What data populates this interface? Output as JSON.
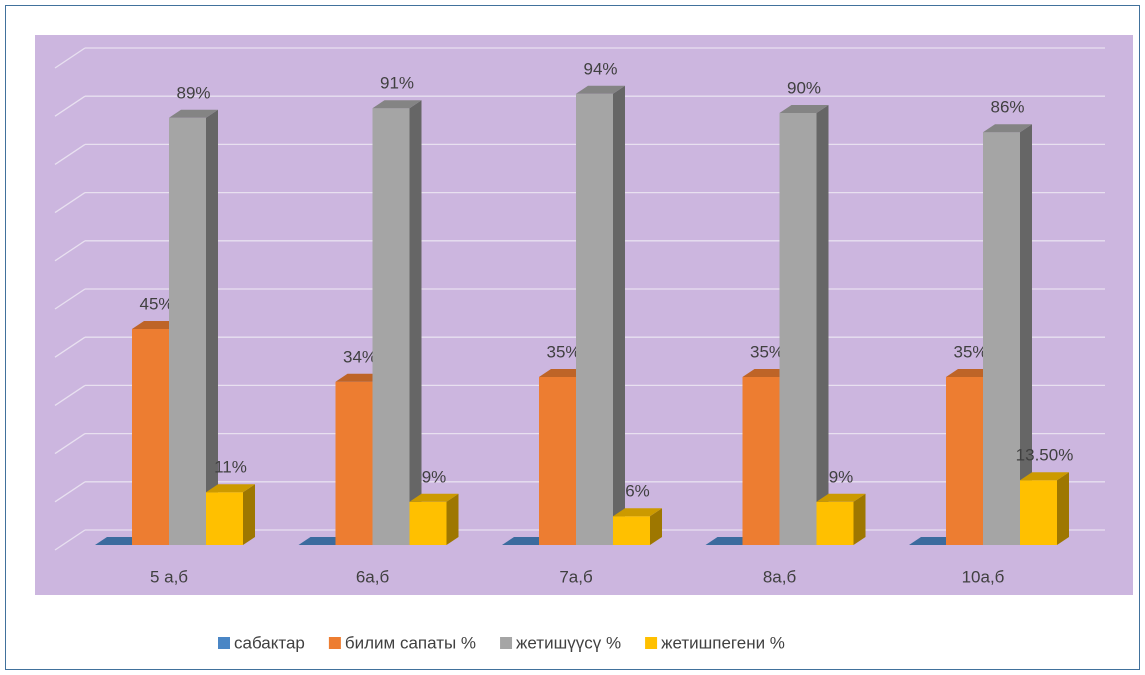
{
  "chart_data": {
    "type": "bar3d",
    "categories": [
      "5 а,б",
      "6а,б",
      "7а,б",
      "8а,б",
      "10а,б"
    ],
    "series": [
      {
        "name": "сабактар",
        "color": "#4a86c5",
        "values": [
          0,
          0,
          0,
          0,
          0
        ]
      },
      {
        "name": "билим сапаты %",
        "color": "#ed7d31",
        "values": [
          45,
          34,
          35,
          35,
          35
        ],
        "value_labels": [
          "45%",
          "34%",
          "35%",
          "35%",
          "35%"
        ]
      },
      {
        "name": "жетишүүсү %",
        "color": "#a5a5a5",
        "values": [
          89,
          91,
          94,
          90,
          86
        ],
        "value_labels": [
          "89%",
          "91%",
          "94%",
          "90%",
          "86%"
        ]
      },
      {
        "name": "жетишпегени  %",
        "color": "#ffc000",
        "values": [
          11,
          9,
          6,
          9,
          13.5
        ],
        "value_labels": [
          "11%",
          "9%",
          "6%",
          "9%",
          "13.50%"
        ]
      }
    ],
    "ylim": [
      0,
      100
    ],
    "yticks": [
      0,
      10,
      20,
      30,
      40,
      50,
      60,
      70,
      80,
      90,
      100
    ],
    "grid": true,
    "legend": "bottom"
  }
}
